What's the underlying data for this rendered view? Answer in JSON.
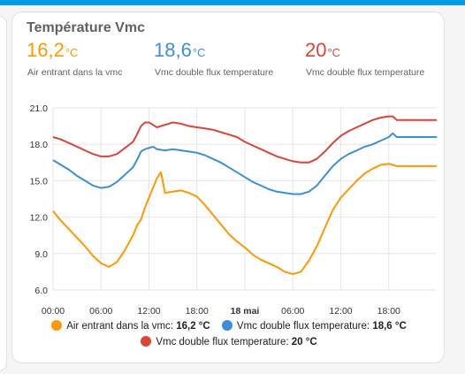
{
  "card": {
    "title": "Température Vmc",
    "stats": [
      {
        "value": "16,2",
        "unit": "°C",
        "name": "Air entrant dans la vmc",
        "color": "#ff9800"
      },
      {
        "value": "18,6",
        "unit": "°C",
        "name": "Vmc double flux temperature",
        "color": "#3b8fd8"
      },
      {
        "value": "20",
        "unit": "°C",
        "name": "Vmc double flux temperature",
        "color": "#db4437"
      }
    ]
  },
  "legend": [
    {
      "name": "Air entrant dans la vmc",
      "value": "16,2 °C",
      "color": "#ff9800"
    },
    {
      "name": "Vmc double flux temperature",
      "value": "18,6 °C",
      "color": "#3b8fd8"
    },
    {
      "name": "Vmc double flux temperature",
      "value": "20 °C",
      "color": "#db4437"
    }
  ],
  "chart_data": {
    "type": "line",
    "grid": true,
    "x_unit": "hours since 17 mai 00:00",
    "xlim": [
      0,
      48
    ],
    "ylim": [
      6,
      21
    ],
    "yticks": [
      "6.0",
      "9.0",
      "12.0",
      "15.0",
      "18.0",
      "21.0"
    ],
    "yticks_values": [
      6,
      9,
      12,
      15,
      18,
      21
    ],
    "xticks": [
      "00:00",
      "06:00",
      "12:00",
      "18:00",
      "18 mai",
      "06:00",
      "12:00",
      "18:00"
    ],
    "xticks_values": [
      0,
      6,
      12,
      18,
      24,
      30,
      36,
      42
    ],
    "series": [
      {
        "name": "Vmc double flux temperature",
        "color": "#db4437",
        "x": [
          0,
          1,
          2,
          3,
          4,
          5,
          6,
          7,
          8,
          9,
          10,
          10.5,
          11,
          11.5,
          12,
          12.5,
          13,
          14,
          15,
          16,
          17,
          18,
          19,
          20,
          21,
          22,
          23,
          24,
          25,
          26,
          27,
          28,
          29,
          30,
          31,
          32,
          33,
          34,
          35,
          36,
          37,
          38,
          39,
          40,
          41,
          42,
          42.5,
          43,
          44,
          45,
          46,
          47,
          48
        ],
        "y": [
          18.6,
          18.4,
          18.1,
          17.8,
          17.5,
          17.2,
          17.0,
          17.0,
          17.2,
          17.7,
          18.2,
          18.8,
          19.5,
          19.8,
          19.8,
          19.6,
          19.4,
          19.6,
          19.8,
          19.7,
          19.5,
          19.4,
          19.3,
          19.2,
          19.0,
          18.8,
          18.6,
          18.2,
          17.9,
          17.6,
          17.3,
          17.0,
          16.8,
          16.6,
          16.5,
          16.5,
          16.8,
          17.4,
          18.1,
          18.7,
          19.1,
          19.4,
          19.7,
          20.0,
          20.2,
          20.3,
          20.3,
          20.0,
          20.0,
          20.0,
          20.0,
          20.0,
          20.0
        ]
      },
      {
        "name": "Vmc double flux temperature",
        "color": "#3b8fd8",
        "x": [
          0,
          1,
          2,
          3,
          4,
          5,
          6,
          7,
          8,
          9,
          10,
          10.5,
          11,
          11.5,
          12,
          12.5,
          13,
          14,
          15,
          16,
          17,
          18,
          19,
          20,
          21,
          22,
          23,
          24,
          25,
          26,
          27,
          28,
          29,
          30,
          31,
          32,
          33,
          34,
          35,
          36,
          37,
          38,
          39,
          40,
          41,
          42,
          42.5,
          43,
          44,
          45,
          46,
          47,
          48
        ],
        "y": [
          16.7,
          16.3,
          15.9,
          15.4,
          15.0,
          14.6,
          14.4,
          14.5,
          14.9,
          15.5,
          16.1,
          16.7,
          17.4,
          17.6,
          17.7,
          17.8,
          17.6,
          17.5,
          17.6,
          17.5,
          17.4,
          17.3,
          17.1,
          16.8,
          16.5,
          16.1,
          15.7,
          15.3,
          14.9,
          14.6,
          14.3,
          14.1,
          14.0,
          13.9,
          13.9,
          14.1,
          14.6,
          15.4,
          16.2,
          16.8,
          17.2,
          17.5,
          17.8,
          18.0,
          18.3,
          18.6,
          18.9,
          18.6,
          18.6,
          18.6,
          18.6,
          18.6,
          18.6
        ]
      },
      {
        "name": "Air entrant dans la vmc",
        "color": "#ff9800",
        "x": [
          0,
          1,
          2,
          3,
          4,
          5,
          6,
          7,
          8,
          9,
          10,
          10.5,
          11,
          11.5,
          12,
          12.5,
          13,
          13.5,
          14,
          15,
          16,
          17,
          18,
          19,
          20,
          21,
          22,
          23,
          24,
          25,
          26,
          27,
          28,
          29,
          30,
          31,
          32,
          33,
          34,
          35,
          36,
          37,
          38,
          39,
          40,
          41,
          42,
          42.5,
          43,
          44,
          45,
          46,
          47,
          48
        ],
        "y": [
          12.5,
          11.7,
          11.0,
          10.3,
          9.6,
          8.8,
          8.2,
          7.9,
          8.3,
          9.3,
          10.5,
          11.3,
          11.8,
          12.8,
          13.6,
          14.4,
          15.2,
          15.7,
          14.0,
          14.1,
          14.2,
          14.0,
          13.7,
          13.0,
          12.2,
          11.4,
          10.6,
          10.0,
          9.5,
          8.9,
          8.5,
          8.2,
          7.9,
          7.5,
          7.3,
          7.5,
          8.4,
          9.6,
          11.1,
          12.6,
          13.6,
          14.3,
          15.0,
          15.6,
          16.0,
          16.3,
          16.4,
          16.3,
          16.2,
          16.2,
          16.2,
          16.2,
          16.2,
          16.2
        ]
      }
    ]
  }
}
